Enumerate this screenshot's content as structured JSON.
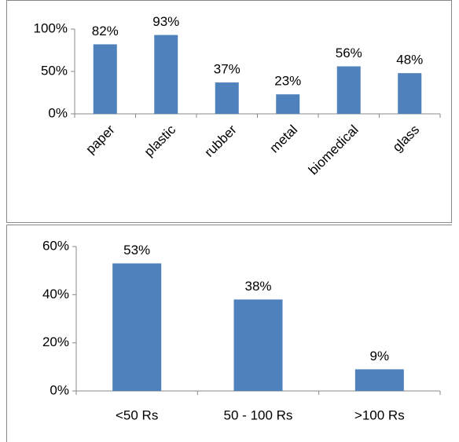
{
  "chart_data": [
    {
      "type": "bar",
      "categories": [
        "paper",
        "plastic",
        "rubber",
        "metal",
        "biomedical",
        "glass"
      ],
      "values": [
        82,
        93,
        37,
        23,
        56,
        48
      ],
      "value_labels": [
        "82%",
        "93%",
        "37%",
        "23%",
        "56%",
        "48%"
      ],
      "color": "#4f81bd",
      "ylim": [
        0,
        100
      ],
      "yticks": [
        {
          "value": 0,
          "label": "0%"
        },
        {
          "value": 50,
          "label": "50%"
        },
        {
          "value": 100,
          "label": "100%"
        }
      ]
    },
    {
      "type": "bar",
      "categories": [
        "<50 Rs",
        "50 - 100 Rs",
        ">100 Rs"
      ],
      "values": [
        53,
        38,
        9
      ],
      "value_labels": [
        "53%",
        "38%",
        "9%"
      ],
      "color": "#4f81bd",
      "ylim": [
        0,
        60
      ],
      "yticks": [
        {
          "value": 0,
          "label": "0%"
        },
        {
          "value": 20,
          "label": "20%"
        },
        {
          "value": 40,
          "label": "40%"
        },
        {
          "value": 60,
          "label": "60%"
        }
      ]
    }
  ]
}
